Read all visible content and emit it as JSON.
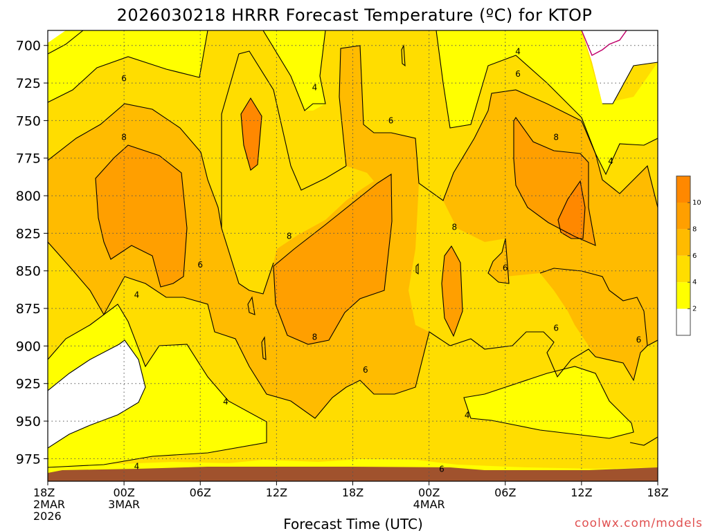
{
  "chart_data": {
    "type": "contour",
    "title": "2026030218 HRRR Forecast Temperature (ºC) for KTOP",
    "xlabel": "Forecast Time (UTC)",
    "ylabel": "",
    "credit": "coolwx.com/models",
    "y_axis": {
      "ticks": [
        "700",
        "725",
        "750",
        "775",
        "800",
        "825",
        "850",
        "875",
        "900",
        "925",
        "950",
        "975"
      ],
      "values": [
        700,
        725,
        750,
        775,
        800,
        825,
        850,
        875,
        900,
        925,
        950,
        975
      ],
      "range": [
        690,
        990
      ],
      "inverted": true
    },
    "x_axis": {
      "range_hours": [
        0,
        48
      ],
      "ticks": [
        {
          "hour": 0,
          "lines": [
            "18Z",
            "2MAR",
            "2026"
          ]
        },
        {
          "hour": 6,
          "lines": [
            "00Z",
            "3MAR"
          ]
        },
        {
          "hour": 12,
          "lines": [
            "06Z"
          ]
        },
        {
          "hour": 18,
          "lines": [
            "12Z"
          ]
        },
        {
          "hour": 24,
          "lines": [
            "18Z"
          ]
        },
        {
          "hour": 30,
          "lines": [
            "00Z",
            "4MAR"
          ]
        },
        {
          "hour": 36,
          "lines": [
            "06Z"
          ]
        },
        {
          "hour": 42,
          "lines": [
            "12Z"
          ]
        },
        {
          "hour": 48,
          "lines": [
            "18Z"
          ]
        }
      ]
    },
    "colorbar": {
      "levels": [
        0,
        2,
        4,
        6,
        8,
        10,
        12
      ],
      "labels": [
        "2",
        "4",
        "6",
        "8",
        "10"
      ],
      "colors": [
        "#ffffff",
        "#ffff00",
        "#ffdd00",
        "#ffbb00",
        "#ff9f00",
        "#ff8800"
      ]
    },
    "contour_labels": [
      {
        "text": "6",
        "hour": 6.0,
        "p": 722
      },
      {
        "text": "8",
        "hour": 6.0,
        "p": 761
      },
      {
        "text": "4",
        "hour": 21.0,
        "p": 728
      },
      {
        "text": "6",
        "hour": 27.0,
        "p": 750
      },
      {
        "text": "4",
        "hour": 37.0,
        "p": 704
      },
      {
        "text": "6",
        "hour": 37.0,
        "p": 719
      },
      {
        "text": "8",
        "hour": 40.0,
        "p": 761
      },
      {
        "text": "4",
        "hour": 44.3,
        "p": 777
      },
      {
        "text": "8",
        "hour": 19.0,
        "p": 827
      },
      {
        "text": "8",
        "hour": 32.0,
        "p": 821
      },
      {
        "text": "6",
        "hour": 12.0,
        "p": 846
      },
      {
        "text": "6",
        "hour": 36.0,
        "p": 848
      },
      {
        "text": "4",
        "hour": 7.0,
        "p": 866
      },
      {
        "text": "6",
        "hour": 40.0,
        "p": 888
      },
      {
        "text": "6",
        "hour": 46.5,
        "p": 896
      },
      {
        "text": "8",
        "hour": 21.0,
        "p": 894
      },
      {
        "text": "6",
        "hour": 25.0,
        "p": 916
      },
      {
        "text": "4",
        "hour": 14.0,
        "p": 937
      },
      {
        "text": "4",
        "hour": 33.0,
        "p": 946
      },
      {
        "text": "4",
        "hour": 7.0,
        "p": 980
      },
      {
        "text": "6",
        "hour": 31.0,
        "p": 982
      }
    ]
  }
}
